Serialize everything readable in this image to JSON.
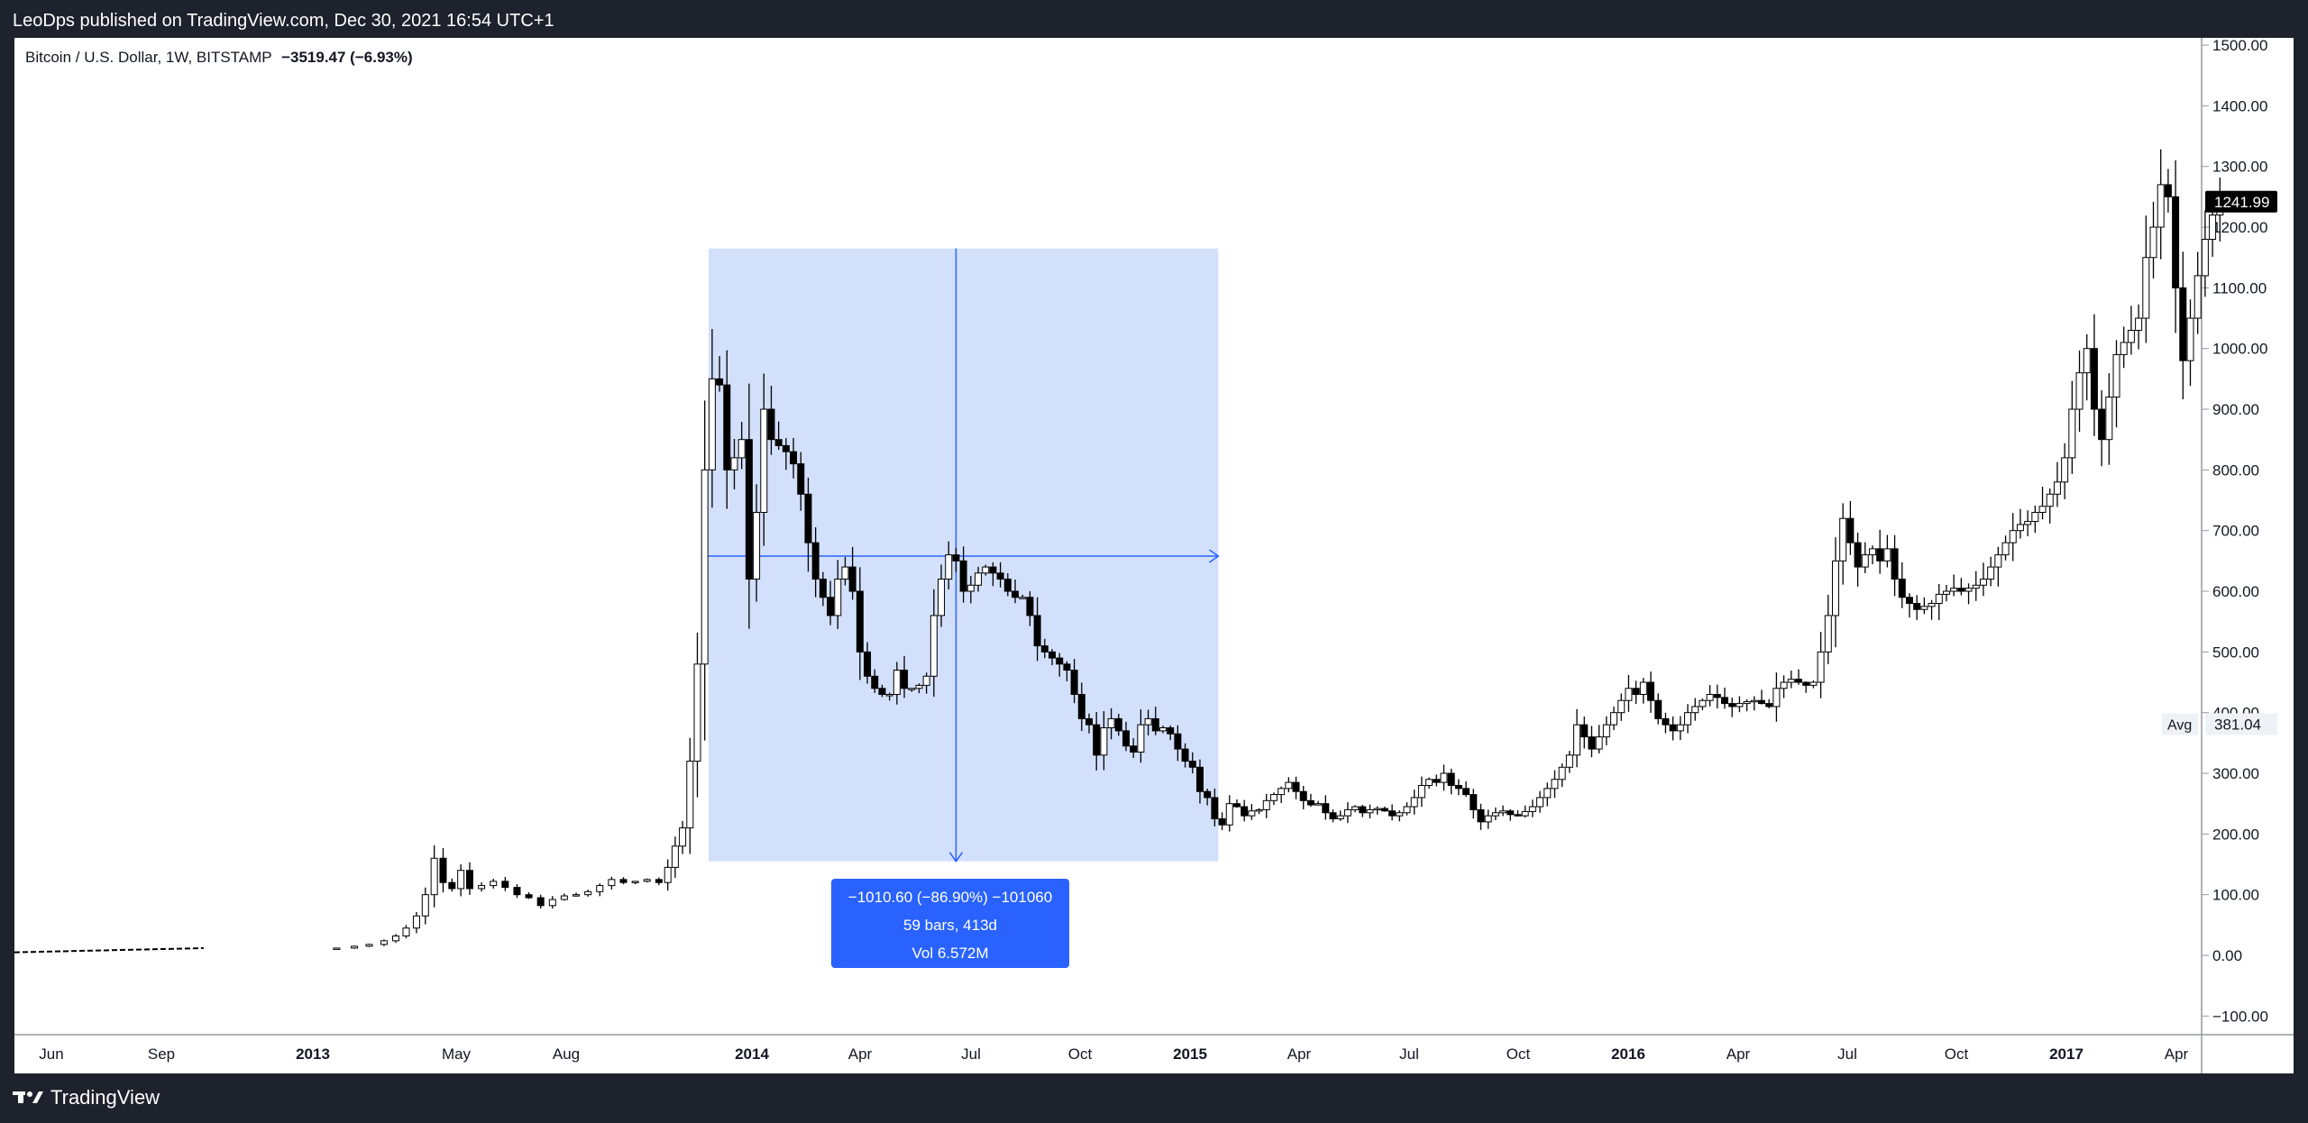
{
  "header": {
    "publisher": "LeoDps published on TradingView.com, Dec 30, 2021 16:54 UTC+1"
  },
  "legend": {
    "symbol": "Bitcoin / U.S. Dollar, 1W, BITSTAMP",
    "change": "−3519.47 (−6.93%)"
  },
  "footer": {
    "brand": "TradingView"
  },
  "price_axis": {
    "ticks": [
      "1500.00",
      "1400.00",
      "1300.00",
      "1200.00",
      "1100.00",
      "1000.00",
      "900.00",
      "800.00",
      "700.00",
      "600.00",
      "500.00",
      "400.00",
      "300.00",
      "200.00",
      "100.00",
      "0.00",
      "−100.00"
    ],
    "last_price": "1241.99",
    "avg_label": "Avg",
    "avg_value": "381.04"
  },
  "time_axis": {
    "labels": [
      {
        "text": "Jun",
        "bold": false
      },
      {
        "text": "Sep",
        "bold": false
      },
      {
        "text": "2013",
        "bold": true
      },
      {
        "text": "May",
        "bold": false
      },
      {
        "text": "Aug",
        "bold": false
      },
      {
        "text": "2014",
        "bold": true
      },
      {
        "text": "Apr",
        "bold": false
      },
      {
        "text": "Jul",
        "bold": false
      },
      {
        "text": "Oct",
        "bold": false
      },
      {
        "text": "2015",
        "bold": true
      },
      {
        "text": "Apr",
        "bold": false
      },
      {
        "text": "Jul",
        "bold": false
      },
      {
        "text": "Oct",
        "bold": false
      },
      {
        "text": "2016",
        "bold": true
      },
      {
        "text": "Apr",
        "bold": false
      },
      {
        "text": "Jul",
        "bold": false
      },
      {
        "text": "Oct",
        "bold": false
      },
      {
        "text": "2017",
        "bold": true
      },
      {
        "text": "Apr",
        "bold": false
      }
    ]
  },
  "measure": {
    "line1": "−1010.60 (−86.90%) −101060",
    "line2": "59 bars, 413d",
    "line3": "Vol 6.572M",
    "high_price": 1165,
    "low_price": 155,
    "crosshair_price": 658,
    "shade_color": "#d1defc",
    "accent_color": "#2962ff"
  },
  "chart_data": {
    "type": "candlestick",
    "title": "Bitcoin / U.S. Dollar, 1W, BITSTAMP",
    "ylim": [
      -130,
      1550
    ],
    "x_range_labels": [
      "Jun 2012",
      "Apr 2017"
    ],
    "colors": {
      "up": "#ffffff",
      "down": "#000000",
      "outline": "#000000"
    },
    "pre_line": {
      "description": "dashed line for early low-price weeks",
      "start": [
        0,
        5
      ],
      "end": [
        130,
        12
      ]
    },
    "series": [
      {
        "x": 218,
        "y": 12
      },
      {
        "x": 230,
        "y": 15
      },
      {
        "x": 240,
        "y": 18
      },
      {
        "x": 250,
        "y": 24
      },
      {
        "x": 258,
        "y": 32
      },
      {
        "x": 265,
        "y": 45
      },
      {
        "x": 272,
        "y": 65
      },
      {
        "x": 278,
        "y": 100
      },
      {
        "x": 284,
        "y": 160
      },
      {
        "x": 290,
        "y": 120
      },
      {
        "x": 296,
        "y": 110
      },
      {
        "x": 302,
        "y": 140
      },
      {
        "x": 308,
        "y": 110
      },
      {
        "x": 316,
        "y": 115
      },
      {
        "x": 324,
        "y": 122
      },
      {
        "x": 332,
        "y": 112
      },
      {
        "x": 340,
        "y": 100
      },
      {
        "x": 348,
        "y": 95
      },
      {
        "x": 356,
        "y": 82
      },
      {
        "x": 364,
        "y": 92
      },
      {
        "x": 372,
        "y": 98
      },
      {
        "x": 380,
        "y": 100
      },
      {
        "x": 388,
        "y": 105
      },
      {
        "x": 396,
        "y": 115
      },
      {
        "x": 404,
        "y": 125
      },
      {
        "x": 412,
        "y": 120
      },
      {
        "x": 420,
        "y": 122
      },
      {
        "x": 428,
        "y": 125
      },
      {
        "x": 436,
        "y": 120
      },
      {
        "x": 442,
        "y": 145
      },
      {
        "x": 447,
        "y": 180
      },
      {
        "x": 452,
        "y": 210
      },
      {
        "x": 457,
        "y": 320
      },
      {
        "x": 462,
        "y": 480
      },
      {
        "x": 467,
        "y": 800
      },
      {
        "x": 472,
        "y": 950
      },
      {
        "x": 477,
        "y": 940
      },
      {
        "x": 482,
        "y": 800
      },
      {
        "x": 487,
        "y": 820
      },
      {
        "x": 492,
        "y": 850
      },
      {
        "x": 497,
        "y": 620
      },
      {
        "x": 502,
        "y": 730
      },
      {
        "x": 507,
        "y": 900
      },
      {
        "x": 512,
        "y": 850
      },
      {
        "x": 517,
        "y": 840
      },
      {
        "x": 522,
        "y": 830
      },
      {
        "x": 527,
        "y": 810
      },
      {
        "x": 532,
        "y": 760
      },
      {
        "x": 537,
        "y": 680
      },
      {
        "x": 542,
        "y": 620
      },
      {
        "x": 547,
        "y": 590
      },
      {
        "x": 552,
        "y": 560
      },
      {
        "x": 557,
        "y": 620
      },
      {
        "x": 562,
        "y": 640
      },
      {
        "x": 567,
        "y": 600
      },
      {
        "x": 572,
        "y": 500
      },
      {
        "x": 577,
        "y": 460
      },
      {
        "x": 582,
        "y": 440
      },
      {
        "x": 587,
        "y": 430
      },
      {
        "x": 592,
        "y": 430
      },
      {
        "x": 597,
        "y": 470
      },
      {
        "x": 602,
        "y": 440
      },
      {
        "x": 607,
        "y": 440
      },
      {
        "x": 612,
        "y": 445
      },
      {
        "x": 617,
        "y": 460
      },
      {
        "x": 622,
        "y": 560
      },
      {
        "x": 627,
        "y": 620
      },
      {
        "x": 632,
        "y": 660
      },
      {
        "x": 637,
        "y": 650
      },
      {
        "x": 642,
        "y": 600
      },
      {
        "x": 647,
        "y": 610
      },
      {
        "x": 652,
        "y": 630
      },
      {
        "x": 657,
        "y": 640
      },
      {
        "x": 662,
        "y": 630
      },
      {
        "x": 667,
        "y": 620
      },
      {
        "x": 672,
        "y": 600
      },
      {
        "x": 677,
        "y": 590
      },
      {
        "x": 682,
        "y": 590
      },
      {
        "x": 687,
        "y": 560
      },
      {
        "x": 692,
        "y": 510
      },
      {
        "x": 697,
        "y": 500
      },
      {
        "x": 702,
        "y": 490
      },
      {
        "x": 707,
        "y": 480
      },
      {
        "x": 712,
        "y": 470
      },
      {
        "x": 717,
        "y": 430
      },
      {
        "x": 722,
        "y": 390
      },
      {
        "x": 727,
        "y": 380
      },
      {
        "x": 732,
        "y": 330
      },
      {
        "x": 737,
        "y": 375
      },
      {
        "x": 742,
        "y": 390
      },
      {
        "x": 747,
        "y": 370
      },
      {
        "x": 752,
        "y": 345
      },
      {
        "x": 757,
        "y": 335
      },
      {
        "x": 762,
        "y": 380
      },
      {
        "x": 767,
        "y": 390
      },
      {
        "x": 772,
        "y": 370
      },
      {
        "x": 777,
        "y": 375
      },
      {
        "x": 782,
        "y": 365
      },
      {
        "x": 787,
        "y": 340
      },
      {
        "x": 792,
        "y": 320
      },
      {
        "x": 797,
        "y": 310
      },
      {
        "x": 802,
        "y": 270
      },
      {
        "x": 807,
        "y": 260
      },
      {
        "x": 812,
        "y": 225
      },
      {
        "x": 817,
        "y": 215
      },
      {
        "x": 822,
        "y": 250
      },
      {
        "x": 827,
        "y": 245
      },
      {
        "x": 832,
        "y": 230
      },
      {
        "x": 837,
        "y": 238
      },
      {
        "x": 842,
        "y": 240
      },
      {
        "x": 847,
        "y": 255
      },
      {
        "x": 852,
        "y": 265
      },
      {
        "x": 857,
        "y": 275
      },
      {
        "x": 862,
        "y": 285
      },
      {
        "x": 867,
        "y": 270
      },
      {
        "x": 872,
        "y": 255
      },
      {
        "x": 877,
        "y": 248
      },
      {
        "x": 882,
        "y": 250
      },
      {
        "x": 887,
        "y": 235
      },
      {
        "x": 892,
        "y": 225
      },
      {
        "x": 897,
        "y": 230
      },
      {
        "x": 902,
        "y": 240
      },
      {
        "x": 907,
        "y": 245
      },
      {
        "x": 912,
        "y": 235
      },
      {
        "x": 917,
        "y": 240
      },
      {
        "x": 922,
        "y": 242
      },
      {
        "x": 927,
        "y": 238
      },
      {
        "x": 932,
        "y": 230
      },
      {
        "x": 937,
        "y": 235
      },
      {
        "x": 942,
        "y": 245
      },
      {
        "x": 947,
        "y": 260
      },
      {
        "x": 952,
        "y": 280
      },
      {
        "x": 957,
        "y": 290
      },
      {
        "x": 962,
        "y": 285
      },
      {
        "x": 967,
        "y": 300
      },
      {
        "x": 972,
        "y": 280
      },
      {
        "x": 977,
        "y": 275
      },
      {
        "x": 982,
        "y": 265
      },
      {
        "x": 987,
        "y": 240
      },
      {
        "x": 992,
        "y": 220
      },
      {
        "x": 997,
        "y": 230
      },
      {
        "x": 1002,
        "y": 235
      },
      {
        "x": 1007,
        "y": 238
      },
      {
        "x": 1012,
        "y": 232
      },
      {
        "x": 1017,
        "y": 230
      },
      {
        "x": 1022,
        "y": 237
      },
      {
        "x": 1027,
        "y": 245
      },
      {
        "x": 1032,
        "y": 260
      },
      {
        "x": 1037,
        "y": 275
      },
      {
        "x": 1042,
        "y": 290
      },
      {
        "x": 1047,
        "y": 310
      },
      {
        "x": 1052,
        "y": 330
      },
      {
        "x": 1057,
        "y": 380
      },
      {
        "x": 1062,
        "y": 360
      },
      {
        "x": 1067,
        "y": 340
      },
      {
        "x": 1072,
        "y": 360
      },
      {
        "x": 1077,
        "y": 380
      },
      {
        "x": 1082,
        "y": 400
      },
      {
        "x": 1087,
        "y": 420
      },
      {
        "x": 1092,
        "y": 440
      },
      {
        "x": 1097,
        "y": 430
      },
      {
        "x": 1102,
        "y": 450
      },
      {
        "x": 1107,
        "y": 420
      },
      {
        "x": 1112,
        "y": 390
      },
      {
        "x": 1117,
        "y": 380
      },
      {
        "x": 1122,
        "y": 370
      },
      {
        "x": 1127,
        "y": 380
      },
      {
        "x": 1132,
        "y": 400
      },
      {
        "x": 1137,
        "y": 410
      },
      {
        "x": 1142,
        "y": 420
      },
      {
        "x": 1147,
        "y": 430
      },
      {
        "x": 1152,
        "y": 425
      },
      {
        "x": 1157,
        "y": 415
      },
      {
        "x": 1162,
        "y": 410
      },
      {
        "x": 1167,
        "y": 415
      },
      {
        "x": 1172,
        "y": 418
      },
      {
        "x": 1177,
        "y": 420
      },
      {
        "x": 1182,
        "y": 415
      },
      {
        "x": 1187,
        "y": 410
      },
      {
        "x": 1192,
        "y": 440
      },
      {
        "x": 1197,
        "y": 450
      },
      {
        "x": 1202,
        "y": 455
      },
      {
        "x": 1207,
        "y": 450
      },
      {
        "x": 1212,
        "y": 445
      },
      {
        "x": 1217,
        "y": 450
      },
      {
        "x": 1222,
        "y": 500
      },
      {
        "x": 1227,
        "y": 560
      },
      {
        "x": 1232,
        "y": 650
      },
      {
        "x": 1237,
        "y": 720
      },
      {
        "x": 1242,
        "y": 680
      },
      {
        "x": 1247,
        "y": 640
      },
      {
        "x": 1252,
        "y": 660
      },
      {
        "x": 1257,
        "y": 670
      },
      {
        "x": 1262,
        "y": 650
      },
      {
        "x": 1267,
        "y": 670
      },
      {
        "x": 1272,
        "y": 620
      },
      {
        "x": 1277,
        "y": 590
      },
      {
        "x": 1282,
        "y": 580
      },
      {
        "x": 1287,
        "y": 570
      },
      {
        "x": 1292,
        "y": 575
      },
      {
        "x": 1297,
        "y": 580
      },
      {
        "x": 1302,
        "y": 595
      },
      {
        "x": 1307,
        "y": 600
      },
      {
        "x": 1312,
        "y": 605
      },
      {
        "x": 1317,
        "y": 600
      },
      {
        "x": 1322,
        "y": 605
      },
      {
        "x": 1327,
        "y": 610
      },
      {
        "x": 1332,
        "y": 620
      },
      {
        "x": 1337,
        "y": 640
      },
      {
        "x": 1342,
        "y": 660
      },
      {
        "x": 1347,
        "y": 680
      },
      {
        "x": 1352,
        "y": 700
      },
      {
        "x": 1357,
        "y": 710
      },
      {
        "x": 1362,
        "y": 715
      },
      {
        "x": 1367,
        "y": 730
      },
      {
        "x": 1372,
        "y": 740
      },
      {
        "x": 1377,
        "y": 760
      },
      {
        "x": 1382,
        "y": 780
      },
      {
        "x": 1387,
        "y": 820
      },
      {
        "x": 1392,
        "y": 900
      },
      {
        "x": 1397,
        "y": 960
      },
      {
        "x": 1402,
        "y": 1000
      },
      {
        "x": 1407,
        "y": 900
      },
      {
        "x": 1412,
        "y": 850
      },
      {
        "x": 1417,
        "y": 920
      },
      {
        "x": 1422,
        "y": 990
      },
      {
        "x": 1427,
        "y": 1010
      },
      {
        "x": 1432,
        "y": 1030
      },
      {
        "x": 1437,
        "y": 1050
      },
      {
        "x": 1442,
        "y": 1150
      },
      {
        "x": 1447,
        "y": 1200
      },
      {
        "x": 1452,
        "y": 1270
      },
      {
        "x": 1457,
        "y": 1250
      },
      {
        "x": 1462,
        "y": 1100
      },
      {
        "x": 1467,
        "y": 980
      },
      {
        "x": 1472,
        "y": 1050
      },
      {
        "x": 1477,
        "y": 1120
      },
      {
        "x": 1482,
        "y": 1180
      },
      {
        "x": 1487,
        "y": 1220
      },
      {
        "x": 1492,
        "y": 1242
      }
    ]
  }
}
